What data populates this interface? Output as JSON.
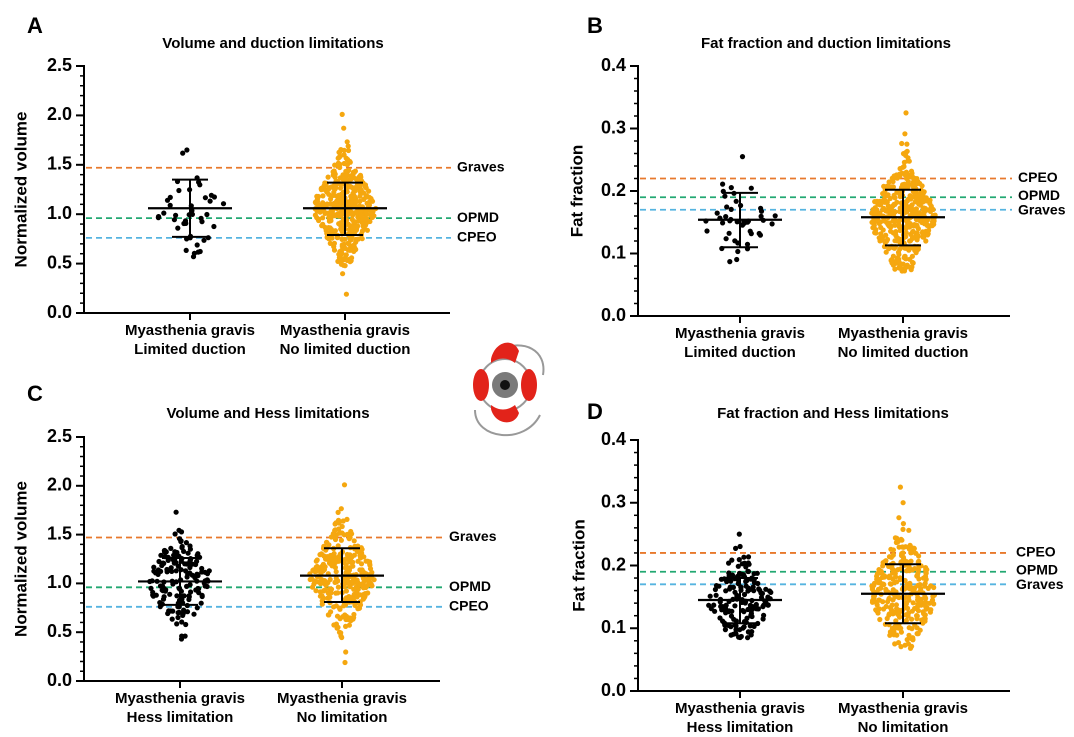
{
  "colors": {
    "limited_points": "#000000",
    "unlimited_points": "#F5A70F",
    "graves_line": "#E8792C",
    "opmd_line": "#22A872",
    "cpeo_line": "#56B4E0",
    "eye_icon_red": "#E2231A",
    "eye_icon_gray": "#7A7A7A"
  },
  "icon": "eye-muscles-icon",
  "chart_data": [
    {
      "panel": "A",
      "type": "scatter",
      "title": "Volume and duction limitations",
      "ylabel": "Normalized volume",
      "xlabel": "",
      "ylim": [
        0,
        2.5
      ],
      "yticks": [
        "0.0",
        "0.5",
        "1.0",
        "1.5",
        "2.0",
        "2.5"
      ],
      "ytick_values": [
        0,
        0.5,
        1.0,
        1.5,
        2.0,
        2.5
      ],
      "categories": [
        {
          "line1": "Myasthenia gravis",
          "line2": "Limited duction"
        },
        {
          "line1": "Myasthenia gravis",
          "line2": "No limited duction"
        }
      ],
      "series": [
        {
          "n": 45,
          "mean": 1.06,
          "sd_low": 0.77,
          "sd_high": 1.35,
          "min": 0.57,
          "max": 1.65,
          "spread": 0.22
        },
        {
          "n": 420,
          "mean": 1.06,
          "sd_low": 0.79,
          "sd_high": 1.32,
          "min": 0.19,
          "max": 2.01,
          "spread": 0.2
        }
      ],
      "reference_lines": [
        {
          "label": "Graves",
          "value": 1.47,
          "color_key": "graves_line"
        },
        {
          "label": "OPMD",
          "value": 0.96,
          "color_key": "opmd_line"
        },
        {
          "label": "CPEO",
          "value": 0.76,
          "color_key": "cpeo_line"
        }
      ]
    },
    {
      "panel": "B",
      "type": "scatter",
      "title": "Fat fraction and duction limitations",
      "ylabel": "Fat fraction",
      "xlabel": "",
      "ylim": [
        0,
        0.4
      ],
      "yticks": [
        "0.0",
        "0.1",
        "0.2",
        "0.3",
        "0.4"
      ],
      "ytick_values": [
        0,
        0.1,
        0.2,
        0.3,
        0.4
      ],
      "categories": [
        {
          "line1": "Myasthenia gravis",
          "line2": "Limited duction"
        },
        {
          "line1": "Myasthenia gravis",
          "line2": "No limited duction"
        }
      ],
      "series": [
        {
          "n": 45,
          "mean": 0.154,
          "sd_low": 0.11,
          "sd_high": 0.197,
          "min": 0.087,
          "max": 0.255,
          "spread": 0.22
        },
        {
          "n": 420,
          "mean": 0.158,
          "sd_low": 0.113,
          "sd_high": 0.202,
          "min": 0.072,
          "max": 0.325,
          "spread": 0.2
        }
      ],
      "reference_lines": [
        {
          "label": "CPEO",
          "value": 0.22,
          "color_key": "graves_line"
        },
        {
          "label": "OPMD",
          "value": 0.19,
          "color_key": "opmd_line"
        },
        {
          "label": "Graves",
          "value": 0.17,
          "color_key": "cpeo_line"
        }
      ]
    },
    {
      "panel": "C",
      "type": "scatter",
      "title": "Volume and Hess limitations",
      "ylabel": "Normalized volume",
      "xlabel": "",
      "ylim": [
        0,
        2.5
      ],
      "yticks": [
        "0.0",
        "0.5",
        "1.0",
        "1.5",
        "2.0",
        "2.5"
      ],
      "ytick_values": [
        0,
        0.5,
        1.0,
        1.5,
        2.0,
        2.5
      ],
      "categories": [
        {
          "line1": "Myasthenia gravis",
          "line2": "Hess limitation"
        },
        {
          "line1": "Myasthenia gravis",
          "line2": "No limitation"
        }
      ],
      "series": [
        {
          "n": 160,
          "mean": 1.02,
          "sd_low": 0.78,
          "sd_high": 1.26,
          "min": 0.43,
          "max": 1.73,
          "spread": 0.2
        },
        {
          "n": 300,
          "mean": 1.08,
          "sd_low": 0.81,
          "sd_high": 1.36,
          "min": 0.19,
          "max": 2.01,
          "spread": 0.2
        }
      ],
      "reference_lines": [
        {
          "label": "Graves",
          "value": 1.47,
          "color_key": "graves_line"
        },
        {
          "label": "OPMD",
          "value": 0.96,
          "color_key": "opmd_line"
        },
        {
          "label": "CPEO",
          "value": 0.76,
          "color_key": "cpeo_line"
        }
      ]
    },
    {
      "panel": "D",
      "type": "scatter",
      "title": "Fat fraction and Hess limitations",
      "ylabel": "Fat fraction",
      "xlabel": "",
      "ylim": [
        0,
        0.4
      ],
      "yticks": [
        "0.0",
        "0.1",
        "0.2",
        "0.3",
        "0.4"
      ],
      "ytick_values": [
        0,
        0.1,
        0.2,
        0.3,
        0.4
      ],
      "categories": [
        {
          "line1": "Myasthenia gravis",
          "line2": "Hess limitation"
        },
        {
          "line1": "Myasthenia gravis",
          "line2": "No limitation"
        }
      ],
      "series": [
        {
          "n": 160,
          "mean": 0.145,
          "sd_low": 0.108,
          "sd_high": 0.18,
          "min": 0.085,
          "max": 0.25,
          "spread": 0.2
        },
        {
          "n": 300,
          "mean": 0.155,
          "sd_low": 0.108,
          "sd_high": 0.202,
          "min": 0.068,
          "max": 0.325,
          "spread": 0.2
        }
      ],
      "reference_lines": [
        {
          "label": "CPEO",
          "value": 0.22,
          "color_key": "graves_line"
        },
        {
          "label": "OPMD",
          "value": 0.19,
          "color_key": "opmd_line"
        },
        {
          "label": "Graves",
          "value": 0.17,
          "color_key": "cpeo_line"
        }
      ]
    }
  ]
}
